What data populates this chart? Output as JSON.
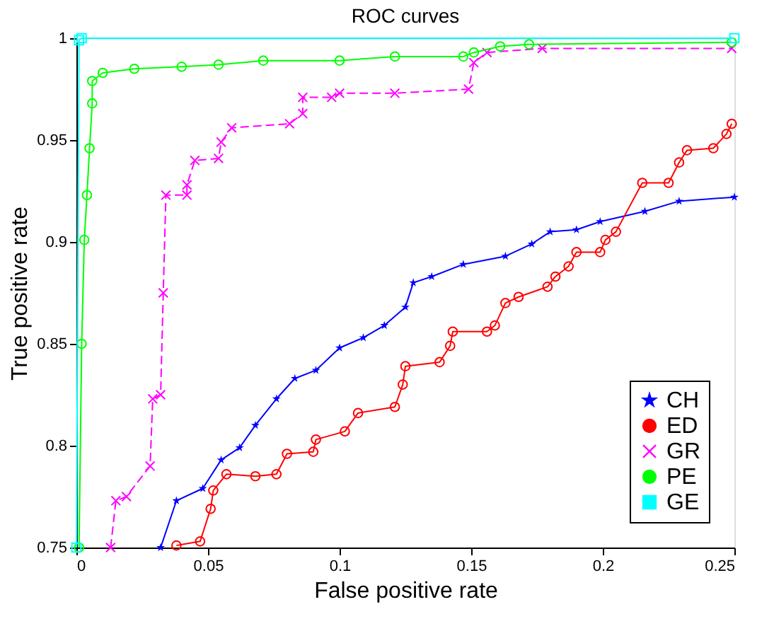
{
  "chart_data": {
    "type": "line",
    "title": "ROC curves",
    "xlabel": "False positive rate",
    "ylabel": "True positive rate",
    "xlim": [
      0,
      0.25
    ],
    "ylim": [
      0.75,
      1
    ],
    "xticks": [
      0,
      0.05,
      0.1,
      0.15,
      0.2,
      0.25
    ],
    "yticks": [
      0.75,
      0.8,
      0.85,
      0.9,
      0.95,
      1
    ],
    "grid": false,
    "legend": "bottom right",
    "series": [
      {
        "name": "CH",
        "color": "#0000ff",
        "marker": "star",
        "line_style": "solid",
        "x": [
          0.032,
          0.038,
          0.048,
          0.055,
          0.062,
          0.068,
          0.076,
          0.083,
          0.091,
          0.1,
          0.109,
          0.117,
          0.125,
          0.128,
          0.135,
          0.147,
          0.163,
          0.173,
          0.18,
          0.19,
          0.199,
          0.216,
          0.229,
          0.25
        ],
        "values": [
          0.75,
          0.773,
          0.779,
          0.793,
          0.799,
          0.81,
          0.823,
          0.833,
          0.837,
          0.848,
          0.853,
          0.859,
          0.868,
          0.88,
          0.883,
          0.889,
          0.893,
          0.899,
          0.905,
          0.906,
          0.91,
          0.915,
          0.92,
          0.922
        ]
      },
      {
        "name": "ED",
        "color": "#ff0000",
        "marker": "circle",
        "line_style": "solid",
        "x": [
          0.038,
          0.047,
          0.051,
          0.052,
          0.057,
          0.068,
          0.076,
          0.08,
          0.09,
          0.091,
          0.102,
          0.107,
          0.121,
          0.124,
          0.125,
          0.138,
          0.142,
          0.143,
          0.156,
          0.159,
          0.163,
          0.168,
          0.179,
          0.182,
          0.187,
          0.19,
          0.199,
          0.201,
          0.205,
          0.215,
          0.225,
          0.229,
          0.232,
          0.242,
          0.247,
          0.249
        ],
        "values": [
          0.751,
          0.753,
          0.769,
          0.778,
          0.786,
          0.785,
          0.786,
          0.796,
          0.797,
          0.803,
          0.807,
          0.816,
          0.819,
          0.83,
          0.839,
          0.841,
          0.849,
          0.856,
          0.856,
          0.859,
          0.87,
          0.873,
          0.878,
          0.883,
          0.888,
          0.895,
          0.895,
          0.901,
          0.905,
          0.929,
          0.929,
          0.939,
          0.945,
          0.946,
          0.953,
          0.958
        ]
      },
      {
        "name": "GR",
        "color": "#ff00ff",
        "marker": "cross",
        "line_style": "dashed",
        "x": [
          0.013,
          0.015,
          0.019,
          0.028,
          0.029,
          0.032,
          0.033,
          0.034,
          0.042,
          0.042,
          0.045,
          0.054,
          0.055,
          0.059,
          0.081,
          0.086,
          0.086,
          0.097,
          0.1,
          0.121,
          0.149,
          0.151,
          0.156,
          0.177,
          0.249
        ],
        "values": [
          0.75,
          0.773,
          0.775,
          0.79,
          0.823,
          0.825,
          0.875,
          0.923,
          0.923,
          0.928,
          0.94,
          0.941,
          0.949,
          0.956,
          0.958,
          0.963,
          0.971,
          0.971,
          0.973,
          0.973,
          0.975,
          0.988,
          0.993,
          0.995,
          0.995
        ]
      },
      {
        "name": "PE",
        "color": "#00ff00",
        "marker": "circle",
        "line_style": "solid",
        "x": [
          0.001,
          0.002,
          0.003,
          0.004,
          0.005,
          0.006,
          0.006,
          0.01,
          0.022,
          0.04,
          0.054,
          0.071,
          0.1,
          0.121,
          0.147,
          0.151,
          0.161,
          0.172,
          0.249
        ],
        "values": [
          0.75,
          0.85,
          0.901,
          0.923,
          0.946,
          0.968,
          0.979,
          0.983,
          0.985,
          0.986,
          0.987,
          0.989,
          0.989,
          0.991,
          0.991,
          0.993,
          0.996,
          0.997,
          0.998
        ]
      },
      {
        "name": "GE",
        "color": "#00ffff",
        "marker": "square",
        "line_style": "solid",
        "x": [
          0,
          0.001,
          0.002,
          0.25
        ],
        "values": [
          0.75,
          0.999,
          1,
          1
        ]
      }
    ]
  }
}
